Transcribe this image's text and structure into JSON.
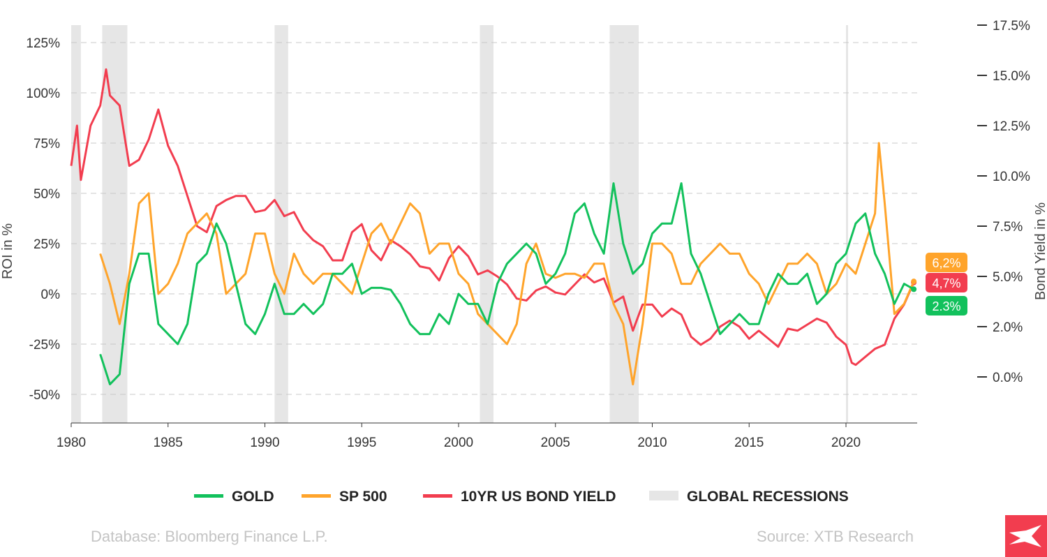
{
  "chart_data": {
    "type": "line",
    "ylabel": "ROI in %",
    "y2label": "Bond Yield in %",
    "xlim": [
      1980,
      2023.8
    ],
    "ylim": [
      -65,
      135
    ],
    "y2lim": [
      -2.5,
      17.5
    ],
    "xticks": [
      "1980",
      "1985",
      "1990",
      "1995",
      "2000",
      "2005",
      "2010",
      "2015",
      "2020"
    ],
    "yticks": [
      "125%",
      "100%",
      "75%",
      "50%",
      "25%",
      "0%",
      "-25%",
      "-50%"
    ],
    "y2ticks": [
      "17.5%",
      "15.0%",
      "12.5%",
      "10.0%",
      "7.5%",
      "5.0%",
      "2.0%",
      "0.0%"
    ],
    "grid": true,
    "legend_position": "bottom",
    "colors": {
      "gold": "#12c15c",
      "sp500": "#ffa42b",
      "bond": "#f23d4f",
      "recession": "#e6e6e6"
    },
    "recessions": [
      [
        1980,
        1980.5
      ],
      [
        1981.6,
        1982.9
      ],
      [
        1990.5,
        1991.2
      ],
      [
        2001.1,
        2001.8
      ],
      [
        2007.8,
        2009.3
      ],
      [
        2020,
        2020.1
      ]
    ],
    "series": [
      {
        "name": "GOLD",
        "axis": "left",
        "end_label": "2.3%",
        "points": [
          [
            1981.5,
            -30
          ],
          [
            1982,
            -45
          ],
          [
            1982.5,
            -40
          ],
          [
            1983,
            5
          ],
          [
            1983.5,
            20
          ],
          [
            1984,
            20
          ],
          [
            1984.5,
            -15
          ],
          [
            1985,
            -20
          ],
          [
            1985.5,
            -25
          ],
          [
            1986,
            -15
          ],
          [
            1986.5,
            15
          ],
          [
            1987,
            20
          ],
          [
            1987.5,
            35
          ],
          [
            1988,
            25
          ],
          [
            1988.5,
            5
          ],
          [
            1989,
            -15
          ],
          [
            1989.5,
            -20
          ],
          [
            1990,
            -10
          ],
          [
            1990.5,
            5
          ],
          [
            1991,
            -10
          ],
          [
            1991.5,
            -10
          ],
          [
            1992,
            -5
          ],
          [
            1992.5,
            -10
          ],
          [
            1993,
            -5
          ],
          [
            1993.5,
            10
          ],
          [
            1994,
            10
          ],
          [
            1994.5,
            15
          ],
          [
            1995,
            0
          ],
          [
            1995.5,
            3
          ],
          [
            1996,
            3
          ],
          [
            1996.5,
            2
          ],
          [
            1997,
            -5
          ],
          [
            1997.5,
            -15
          ],
          [
            1998,
            -20
          ],
          [
            1998.5,
            -20
          ],
          [
            1999,
            -10
          ],
          [
            1999.5,
            -15
          ],
          [
            2000,
            0
          ],
          [
            2000.5,
            -5
          ],
          [
            2001,
            -5
          ],
          [
            2001.5,
            -15
          ],
          [
            2002,
            5
          ],
          [
            2002.5,
            15
          ],
          [
            2003,
            20
          ],
          [
            2003.5,
            25
          ],
          [
            2004,
            20
          ],
          [
            2004.5,
            5
          ],
          [
            2005,
            10
          ],
          [
            2005.5,
            20
          ],
          [
            2006,
            40
          ],
          [
            2006.5,
            45
          ],
          [
            2007,
            30
          ],
          [
            2007.5,
            20
          ],
          [
            2008,
            55
          ],
          [
            2008.5,
            25
          ],
          [
            2009,
            10
          ],
          [
            2009.5,
            15
          ],
          [
            2010,
            30
          ],
          [
            2010.5,
            35
          ],
          [
            2011,
            35
          ],
          [
            2011.5,
            55
          ],
          [
            2012,
            20
          ],
          [
            2012.5,
            10
          ],
          [
            2013,
            -5
          ],
          [
            2013.5,
            -20
          ],
          [
            2014,
            -15
          ],
          [
            2014.5,
            -10
          ],
          [
            2015,
            -15
          ],
          [
            2015.5,
            -15
          ],
          [
            2016,
            0
          ],
          [
            2016.5,
            10
          ],
          [
            2017,
            5
          ],
          [
            2017.5,
            5
          ],
          [
            2018,
            10
          ],
          [
            2018.5,
            -5
          ],
          [
            2019,
            0
          ],
          [
            2019.5,
            15
          ],
          [
            2020,
            20
          ],
          [
            2020.5,
            35
          ],
          [
            2021,
            40
          ],
          [
            2021.5,
            20
          ],
          [
            2022,
            10
          ],
          [
            2022.5,
            -5
          ],
          [
            2023,
            5
          ],
          [
            2023.5,
            2.3
          ]
        ]
      },
      {
        "name": "SP 500",
        "axis": "left",
        "end_label": "6,2%",
        "points": [
          [
            1981.5,
            20
          ],
          [
            1982,
            5
          ],
          [
            1982.5,
            -15
          ],
          [
            1983,
            10
          ],
          [
            1983.5,
            45
          ],
          [
            1984,
            50
          ],
          [
            1984.5,
            0
          ],
          [
            1985,
            5
          ],
          [
            1985.5,
            15
          ],
          [
            1986,
            30
          ],
          [
            1986.5,
            35
          ],
          [
            1987,
            40
          ],
          [
            1987.5,
            30
          ],
          [
            1988,
            0
          ],
          [
            1988.5,
            5
          ],
          [
            1989,
            10
          ],
          [
            1989.5,
            30
          ],
          [
            1990,
            30
          ],
          [
            1990.5,
            10
          ],
          [
            1991,
            0
          ],
          [
            1991.5,
            20
          ],
          [
            1992,
            10
          ],
          [
            1992.5,
            5
          ],
          [
            1993,
            10
          ],
          [
            1993.5,
            10
          ],
          [
            1994,
            5
          ],
          [
            1994.5,
            0
          ],
          [
            1995,
            15
          ],
          [
            1995.5,
            30
          ],
          [
            1996,
            35
          ],
          [
            1996.5,
            25
          ],
          [
            1997,
            35
          ],
          [
            1997.5,
            45
          ],
          [
            1998,
            40
          ],
          [
            1998.5,
            20
          ],
          [
            1999,
            25
          ],
          [
            1999.5,
            25
          ],
          [
            2000,
            10
          ],
          [
            2000.5,
            5
          ],
          [
            2001,
            -10
          ],
          [
            2001.5,
            -15
          ],
          [
            2002,
            -20
          ],
          [
            2002.5,
            -25
          ],
          [
            2003,
            -15
          ],
          [
            2003.5,
            15
          ],
          [
            2004,
            25
          ],
          [
            2004.5,
            10
          ],
          [
            2005,
            8
          ],
          [
            2005.5,
            10
          ],
          [
            2006,
            10
          ],
          [
            2006.5,
            8
          ],
          [
            2007,
            15
          ],
          [
            2007.5,
            15
          ],
          [
            2008,
            -5
          ],
          [
            2008.5,
            -15
          ],
          [
            2009,
            -45
          ],
          [
            2009.5,
            -15
          ],
          [
            2010,
            25
          ],
          [
            2010.5,
            25
          ],
          [
            2011,
            20
          ],
          [
            2011.5,
            5
          ],
          [
            2012,
            5
          ],
          [
            2012.5,
            15
          ],
          [
            2013,
            20
          ],
          [
            2013.5,
            25
          ],
          [
            2014,
            20
          ],
          [
            2014.5,
            20
          ],
          [
            2015,
            10
          ],
          [
            2015.5,
            5
          ],
          [
            2016,
            -5
          ],
          [
            2016.5,
            5
          ],
          [
            2017,
            15
          ],
          [
            2017.5,
            15
          ],
          [
            2018,
            20
          ],
          [
            2018.5,
            15
          ],
          [
            2019,
            0
          ],
          [
            2019.5,
            5
          ],
          [
            2020,
            15
          ],
          [
            2020.5,
            10
          ],
          [
            2021,
            25
          ],
          [
            2021.5,
            40
          ],
          [
            2021.7,
            75
          ],
          [
            2022,
            45
          ],
          [
            2022.5,
            -10
          ],
          [
            2023,
            -5
          ],
          [
            2023.5,
            6.2
          ]
        ]
      },
      {
        "name": "10YR US BOND YIELD",
        "axis": "right",
        "end_label": "4,7%",
        "points": [
          [
            1980,
            10.5
          ],
          [
            1980.3,
            12.5
          ],
          [
            1980.5,
            9.8
          ],
          [
            1981,
            12.5
          ],
          [
            1981.5,
            13.5
          ],
          [
            1981.8,
            15.3
          ],
          [
            1982,
            14
          ],
          [
            1982.5,
            13.5
          ],
          [
            1983,
            10.5
          ],
          [
            1983.5,
            10.8
          ],
          [
            1984,
            11.8
          ],
          [
            1984.5,
            13.3
          ],
          [
            1985,
            11.5
          ],
          [
            1985.5,
            10.5
          ],
          [
            1986,
            9
          ],
          [
            1986.5,
            7.5
          ],
          [
            1987,
            7.2
          ],
          [
            1987.5,
            8.5
          ],
          [
            1988,
            8.8
          ],
          [
            1988.5,
            9
          ],
          [
            1989,
            9
          ],
          [
            1989.5,
            8.2
          ],
          [
            1990,
            8.3
          ],
          [
            1990.5,
            8.8
          ],
          [
            1991,
            8
          ],
          [
            1991.5,
            8.2
          ],
          [
            1992,
            7.3
          ],
          [
            1992.5,
            6.8
          ],
          [
            1993,
            6.5
          ],
          [
            1993.5,
            5.8
          ],
          [
            1994,
            5.8
          ],
          [
            1994.5,
            7.2
          ],
          [
            1995,
            7.6
          ],
          [
            1995.5,
            6.3
          ],
          [
            1996,
            5.8
          ],
          [
            1996.5,
            6.8
          ],
          [
            1997,
            6.5
          ],
          [
            1997.5,
            6.1
          ],
          [
            1998,
            5.5
          ],
          [
            1998.5,
            5.4
          ],
          [
            1999,
            4.8
          ],
          [
            1999.5,
            5.9
          ],
          [
            2000,
            6.5
          ],
          [
            2000.5,
            6
          ],
          [
            2001,
            5.1
          ],
          [
            2001.5,
            5.3
          ],
          [
            2002,
            5
          ],
          [
            2002.5,
            4.6
          ],
          [
            2003,
            3.9
          ],
          [
            2003.5,
            3.8
          ],
          [
            2004,
            4.3
          ],
          [
            2004.5,
            4.5
          ],
          [
            2005,
            4.2
          ],
          [
            2005.5,
            4.1
          ],
          [
            2006,
            4.6
          ],
          [
            2006.5,
            5.1
          ],
          [
            2007,
            4.7
          ],
          [
            2007.5,
            4.9
          ],
          [
            2008,
            3.7
          ],
          [
            2008.5,
            4
          ],
          [
            2009,
            2.3
          ],
          [
            2009.5,
            3.6
          ],
          [
            2010,
            3.6
          ],
          [
            2010.5,
            3
          ],
          [
            2011,
            3.4
          ],
          [
            2011.5,
            3.1
          ],
          [
            2012,
            2
          ],
          [
            2012.5,
            1.6
          ],
          [
            2013,
            1.9
          ],
          [
            2013.5,
            2.5
          ],
          [
            2014,
            2.8
          ],
          [
            2014.5,
            2.5
          ],
          [
            2015,
            1.9
          ],
          [
            2015.5,
            2.3
          ],
          [
            2016,
            1.9
          ],
          [
            2016.5,
            1.5
          ],
          [
            2017,
            2.4
          ],
          [
            2017.5,
            2.3
          ],
          [
            2018,
            2.6
          ],
          [
            2018.5,
            2.9
          ],
          [
            2019,
            2.7
          ],
          [
            2019.5,
            2
          ],
          [
            2020,
            1.6
          ],
          [
            2020.3,
            0.7
          ],
          [
            2020.5,
            0.6
          ],
          [
            2021,
            1
          ],
          [
            2021.5,
            1.4
          ],
          [
            2022,
            1.6
          ],
          [
            2022.5,
            2.9
          ],
          [
            2023,
            3.6
          ],
          [
            2023.5,
            4.7
          ]
        ]
      }
    ],
    "legend": [
      "GOLD",
      "SP 500",
      "10YR US BOND YIELD",
      "GLOBAL RECESSIONS"
    ]
  },
  "footer": {
    "database": "Database: Bloomberg Finance L.P.",
    "source": "Source: XTB Research"
  },
  "logo": "XTB"
}
